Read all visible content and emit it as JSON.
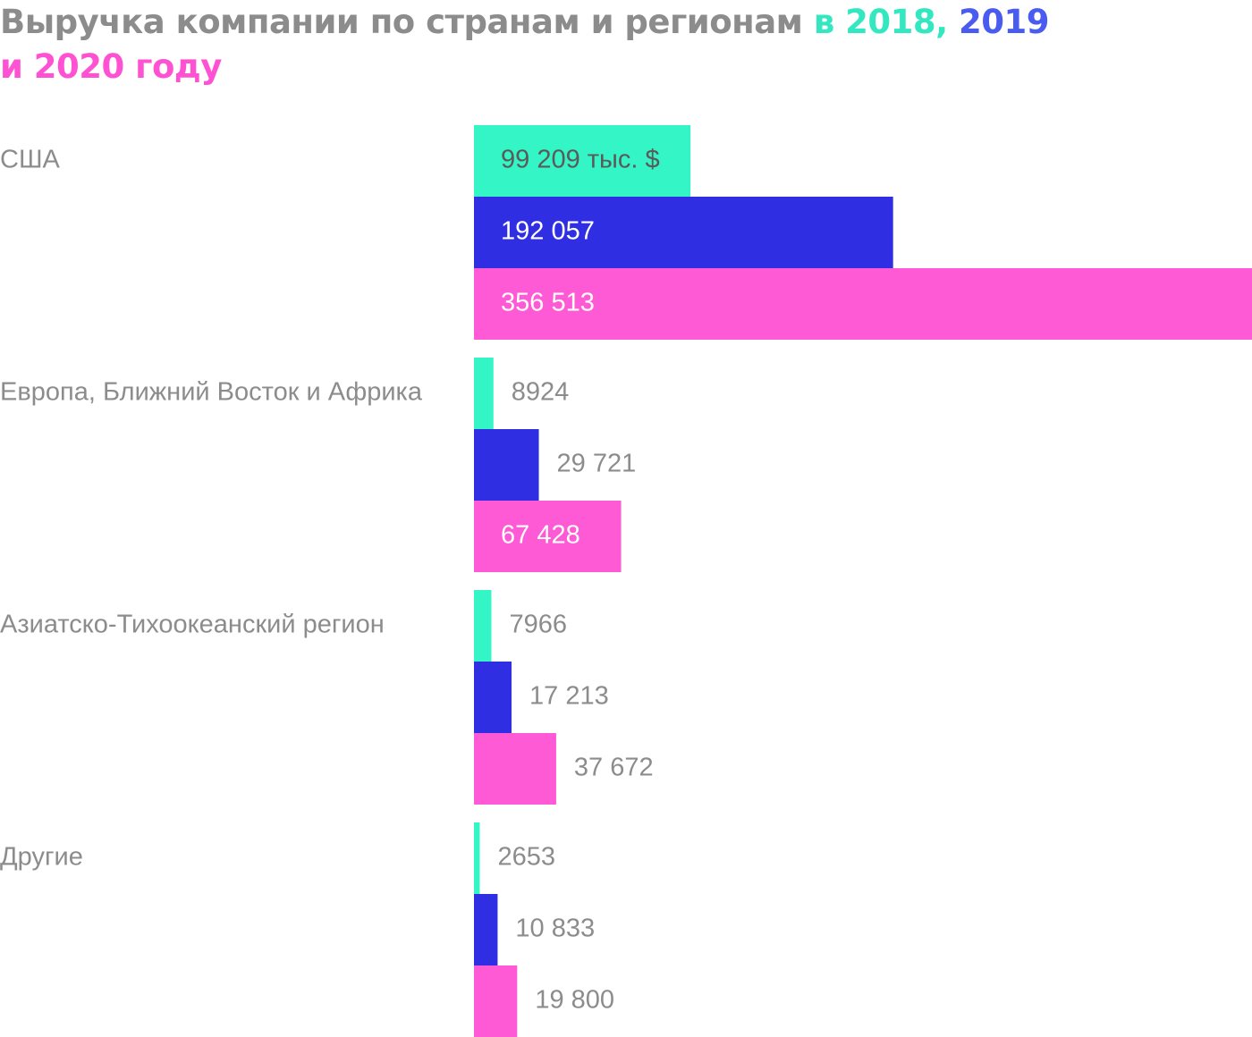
{
  "title": {
    "line1_main": "Выручка компании по странам и регионам ",
    "line1_in": "в ",
    "line1_y2018": "2018,",
    "line1_space": " ",
    "line1_y2019": "2019",
    "line2_y2020": "и 2020 году"
  },
  "chart_data": {
    "type": "bar",
    "orientation": "horizontal",
    "title": "Выручка компании по странам и регионам в 2018, 2019 и 2020 году",
    "unit": "тыс. $",
    "categories": [
      "США",
      "Европа, Ближний Восток и Африка",
      "Азиатско-Тихоокеанский регион",
      "Другие"
    ],
    "series": [
      {
        "name": "2018",
        "color": "#33f5c5",
        "values": [
          99209,
          8924,
          7966,
          2653
        ],
        "labels": [
          "99 209 тыс. $",
          "8924",
          "7966",
          "2653"
        ]
      },
      {
        "name": "2019",
        "color": "#2f2ee3",
        "values": [
          192057,
          29721,
          17213,
          10833
        ],
        "labels": [
          "192 057",
          "29 721",
          "17 213",
          "10 833"
        ]
      },
      {
        "name": "2020",
        "color": "#ff5ad6",
        "values": [
          356513,
          67428,
          37672,
          19800
        ],
        "labels": [
          "356 513",
          "67 428",
          "37 672",
          "19 800"
        ]
      }
    ],
    "xlim": [
      0,
      356513
    ],
    "grid": false,
    "legend": "in-title"
  }
}
